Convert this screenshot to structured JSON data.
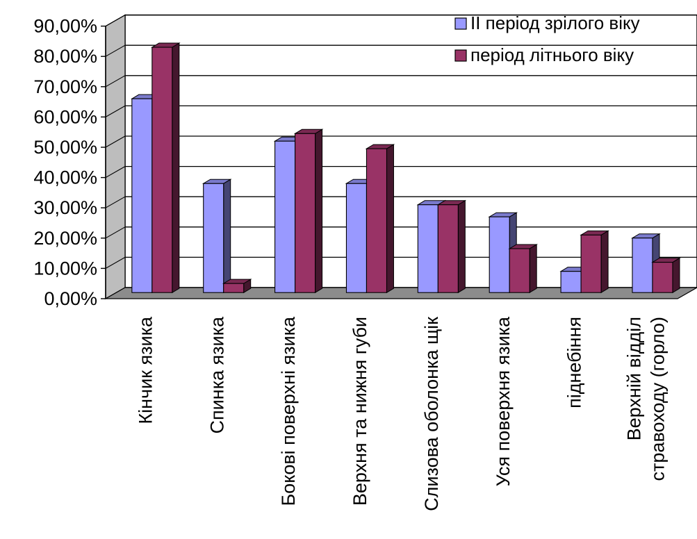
{
  "chart_data": {
    "type": "bar",
    "style": "3d-clustered-column",
    "categories": [
      "Кінчик язика",
      "Спинка язика",
      "Бокові поверхні язика",
      "Верхня та нижня губи",
      "Слизова оболонка щік",
      "Уся поверхня язика",
      "піднебіння",
      "Верхній відділ стравоходу (горло)"
    ],
    "series": [
      {
        "name": "ІІ період зрілого віку",
        "color": "#9999FF",
        "values": [
          64,
          36,
          50,
          36,
          29,
          25,
          7,
          18
        ]
      },
      {
        "name": "період літнього віку",
        "color": "#993366",
        "values": [
          81,
          3,
          52.5,
          47.5,
          29,
          14.5,
          19,
          10
        ]
      }
    ],
    "ylim": [
      0,
      90
    ],
    "y_ticks": [
      "0,00%",
      "10,00%",
      "20,00%",
      "30,00%",
      "40,00%",
      "50,00%",
      "60,00%",
      "70,00%",
      "80,00%",
      "90,00%"
    ],
    "grid": true,
    "legend_position": "top-right",
    "title": "",
    "xlabel": "",
    "ylabel": ""
  }
}
